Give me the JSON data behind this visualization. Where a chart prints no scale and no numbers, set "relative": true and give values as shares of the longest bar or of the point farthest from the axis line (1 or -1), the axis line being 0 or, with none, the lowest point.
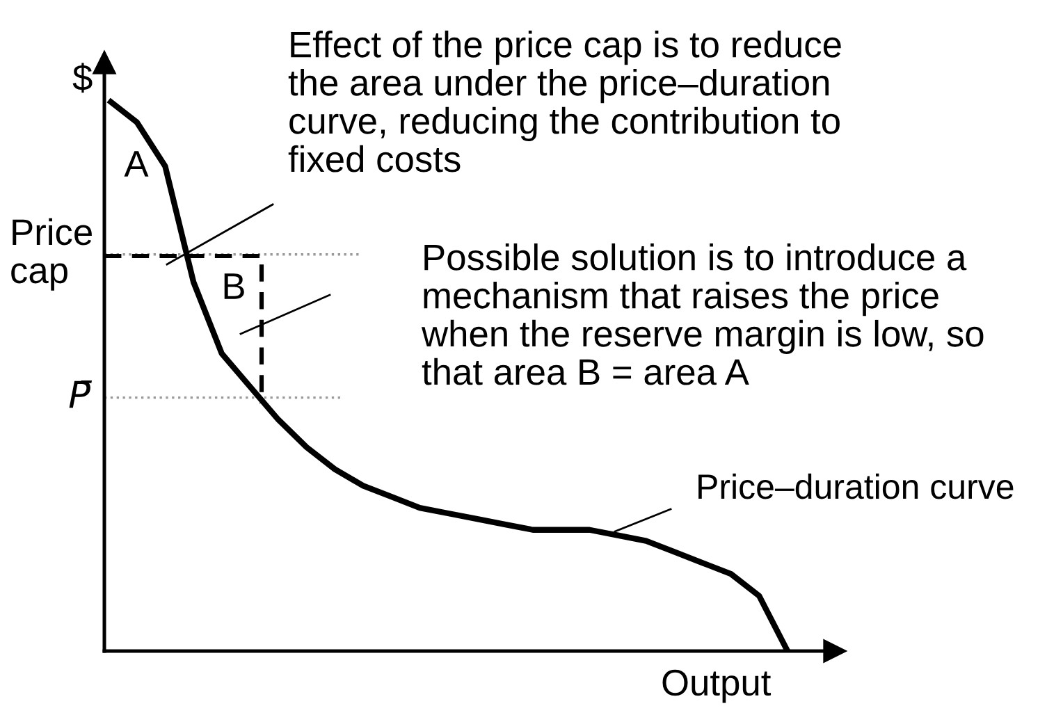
{
  "chart_data": {
    "type": "line",
    "relative": true,
    "xlabel": "Output",
    "ylabel": "$",
    "categories": [
      null,
      null,
      null,
      null,
      null,
      null,
      null,
      null,
      null,
      null,
      null,
      null,
      null,
      null,
      null,
      null,
      null,
      null,
      null,
      null,
      null,
      null,
      null,
      null,
      null
    ],
    "series": [
      {
        "name": "Price–duration curve",
        "color": "#000000",
        "values": [
          1.0,
          0.96,
          0.88,
          0.67,
          0.54,
          0.48,
          0.42,
          0.37,
          0.33,
          0.3,
          0.28,
          0.26,
          0.25,
          0.24,
          0.23,
          0.22,
          0.22,
          0.22,
          0.21,
          0.2,
          0.18,
          0.16,
          0.14,
          0.1,
          0.0
        ]
      }
    ],
    "ref_lines": [
      {
        "axis": "y",
        "value": 0.72,
        "label": "Price\ncap",
        "color": "#999999",
        "line_style": "dotted"
      },
      {
        "axis": "y",
        "value": 0.46,
        "label": "P̄",
        "color": "#999999",
        "line_style": "dotted"
      }
    ],
    "annotations": [
      "Effect of the price cap is to reduce\nthe area under the price–duration\ncurve, reducing the contribution to\nfixed costs",
      "Possible solution is to introduce a\nmechanism that raises the price\nwhen the reserve margin is low, so\nthat area B = area A",
      "A",
      "B"
    ]
  }
}
